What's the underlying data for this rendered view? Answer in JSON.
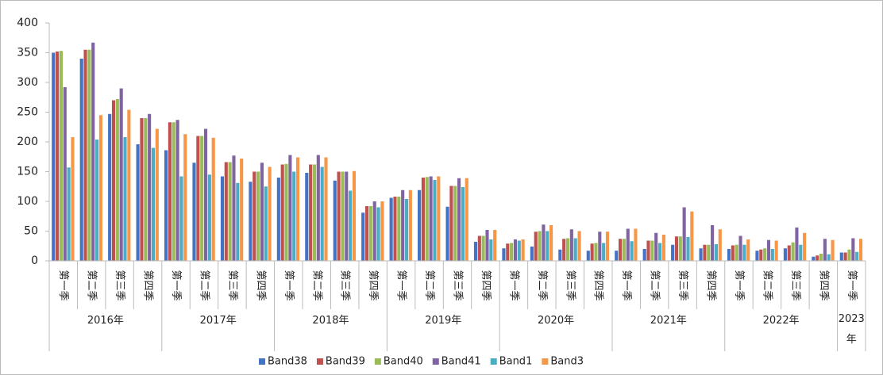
{
  "chart_data": {
    "type": "bar",
    "categories": [
      "第一季",
      "第二季",
      "第三季",
      "第四季",
      "第一季",
      "第二季",
      "第三季",
      "第四季",
      "第一季",
      "第二季",
      "第三季",
      "第四季",
      "第一季",
      "第二季",
      "第三季",
      "第四季",
      "第一季",
      "第二季",
      "第三季",
      "第四季",
      "第一季",
      "第二季",
      "第三季",
      "第四季",
      "第一季",
      "第二季",
      "第三季",
      "第四季",
      "第一季"
    ],
    "groups": [
      "2016年",
      "2017年",
      "2018年",
      "2019年",
      "2020年",
      "2021年",
      "2022年",
      "2023年"
    ],
    "series": [
      {
        "name": "Band38",
        "color": "#4472c4",
        "values": [
          350,
          340,
          247,
          196,
          186,
          165,
          142,
          133,
          140,
          148,
          135,
          81,
          106,
          119,
          91,
          32,
          21,
          24,
          19,
          17,
          17,
          20,
          27,
          21,
          20,
          17,
          21,
          7,
          14
        ]
      },
      {
        "name": "Band39",
        "color": "#c0504d",
        "values": [
          352,
          355,
          270,
          240,
          233,
          210,
          166,
          150,
          162,
          162,
          150,
          92,
          108,
          140,
          126,
          42,
          29,
          49,
          37,
          29,
          37,
          34,
          41,
          27,
          26,
          19,
          26,
          9,
          14
        ]
      },
      {
        "name": "Band40",
        "color": "#9bbb59",
        "values": [
          353,
          355,
          272,
          240,
          233,
          210,
          166,
          150,
          163,
          162,
          150,
          92,
          108,
          141,
          126,
          42,
          30,
          50,
          38,
          30,
          37,
          34,
          41,
          27,
          27,
          21,
          31,
          12,
          19
        ]
      },
      {
        "name": "Band41",
        "color": "#8064a2",
        "values": [
          292,
          367,
          290,
          247,
          237,
          222,
          177,
          165,
          178,
          178,
          150,
          100,
          119,
          142,
          139,
          52,
          36,
          61,
          53,
          49,
          54,
          47,
          90,
          60,
          42,
          35,
          56,
          37,
          38
        ]
      },
      {
        "name": "Band1",
        "color": "#4bacc6",
        "values": [
          157,
          204,
          208,
          190,
          142,
          145,
          131,
          125,
          150,
          158,
          118,
          90,
          104,
          136,
          124,
          36,
          34,
          50,
          38,
          30,
          33,
          30,
          40,
          28,
          27,
          20,
          27,
          11,
          15
        ]
      },
      {
        "name": "Band3",
        "color": "#f79646",
        "values": [
          208,
          245,
          254,
          222,
          213,
          207,
          172,
          158,
          174,
          174,
          151,
          100,
          119,
          142,
          139,
          52,
          36,
          60,
          50,
          49,
          54,
          44,
          83,
          53,
          36,
          34,
          47,
          35,
          37
        ]
      }
    ],
    "ylim": [
      0,
      400
    ],
    "yticks": [
      0,
      50,
      100,
      150,
      200,
      250,
      300,
      350,
      400
    ],
    "grid": false,
    "legend": "bottom"
  }
}
